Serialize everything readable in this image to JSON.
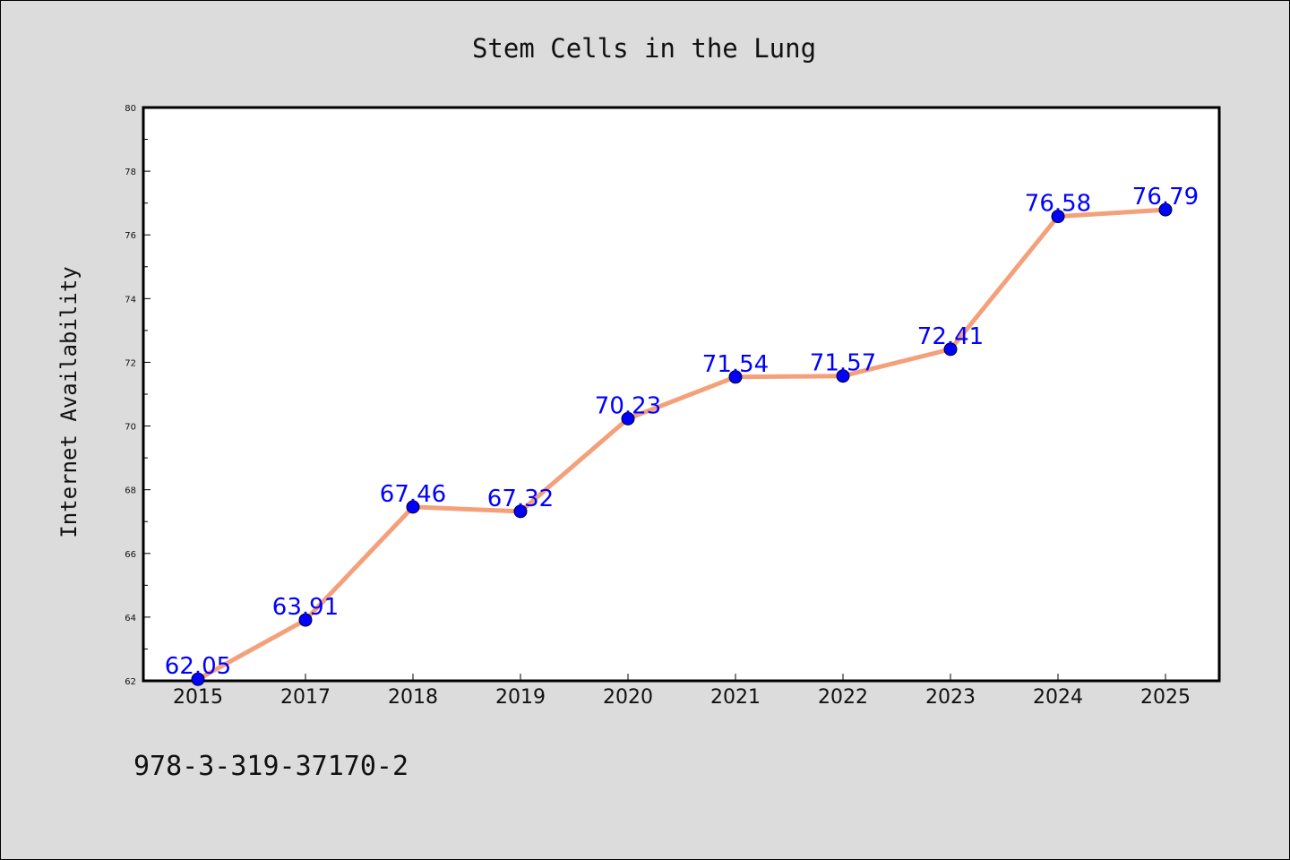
{
  "chart_data": {
    "type": "line",
    "title": "Stem Cells in the Lung",
    "xlabel": "",
    "ylabel": "Internet Availability",
    "categories": [
      "2015",
      "2017",
      "2018",
      "2019",
      "2020",
      "2021",
      "2022",
      "2023",
      "2024",
      "2025"
    ],
    "series": [
      {
        "values": [
          62.05,
          63.91,
          67.46,
          67.32,
          70.23,
          71.54,
          71.57,
          72.41,
          76.58,
          76.79
        ],
        "labels": [
          "62.05",
          "63.91",
          "67.46",
          "67.32",
          "70.23",
          "71.54",
          "71.57",
          "72.41",
          "76.58",
          "76.79"
        ],
        "line_color": "#f4a07a",
        "marker_color": "#0000ff"
      }
    ],
    "ylim": [
      62,
      80
    ],
    "yticks": [
      62,
      64,
      66,
      68,
      70,
      72,
      74,
      76,
      78,
      80
    ],
    "grid": false,
    "legend": "none"
  },
  "footer": {
    "isbn": "978-3-319-37170-2"
  },
  "colors": {
    "background": "#dcdcdc",
    "plot_background": "#ffffff"
  }
}
